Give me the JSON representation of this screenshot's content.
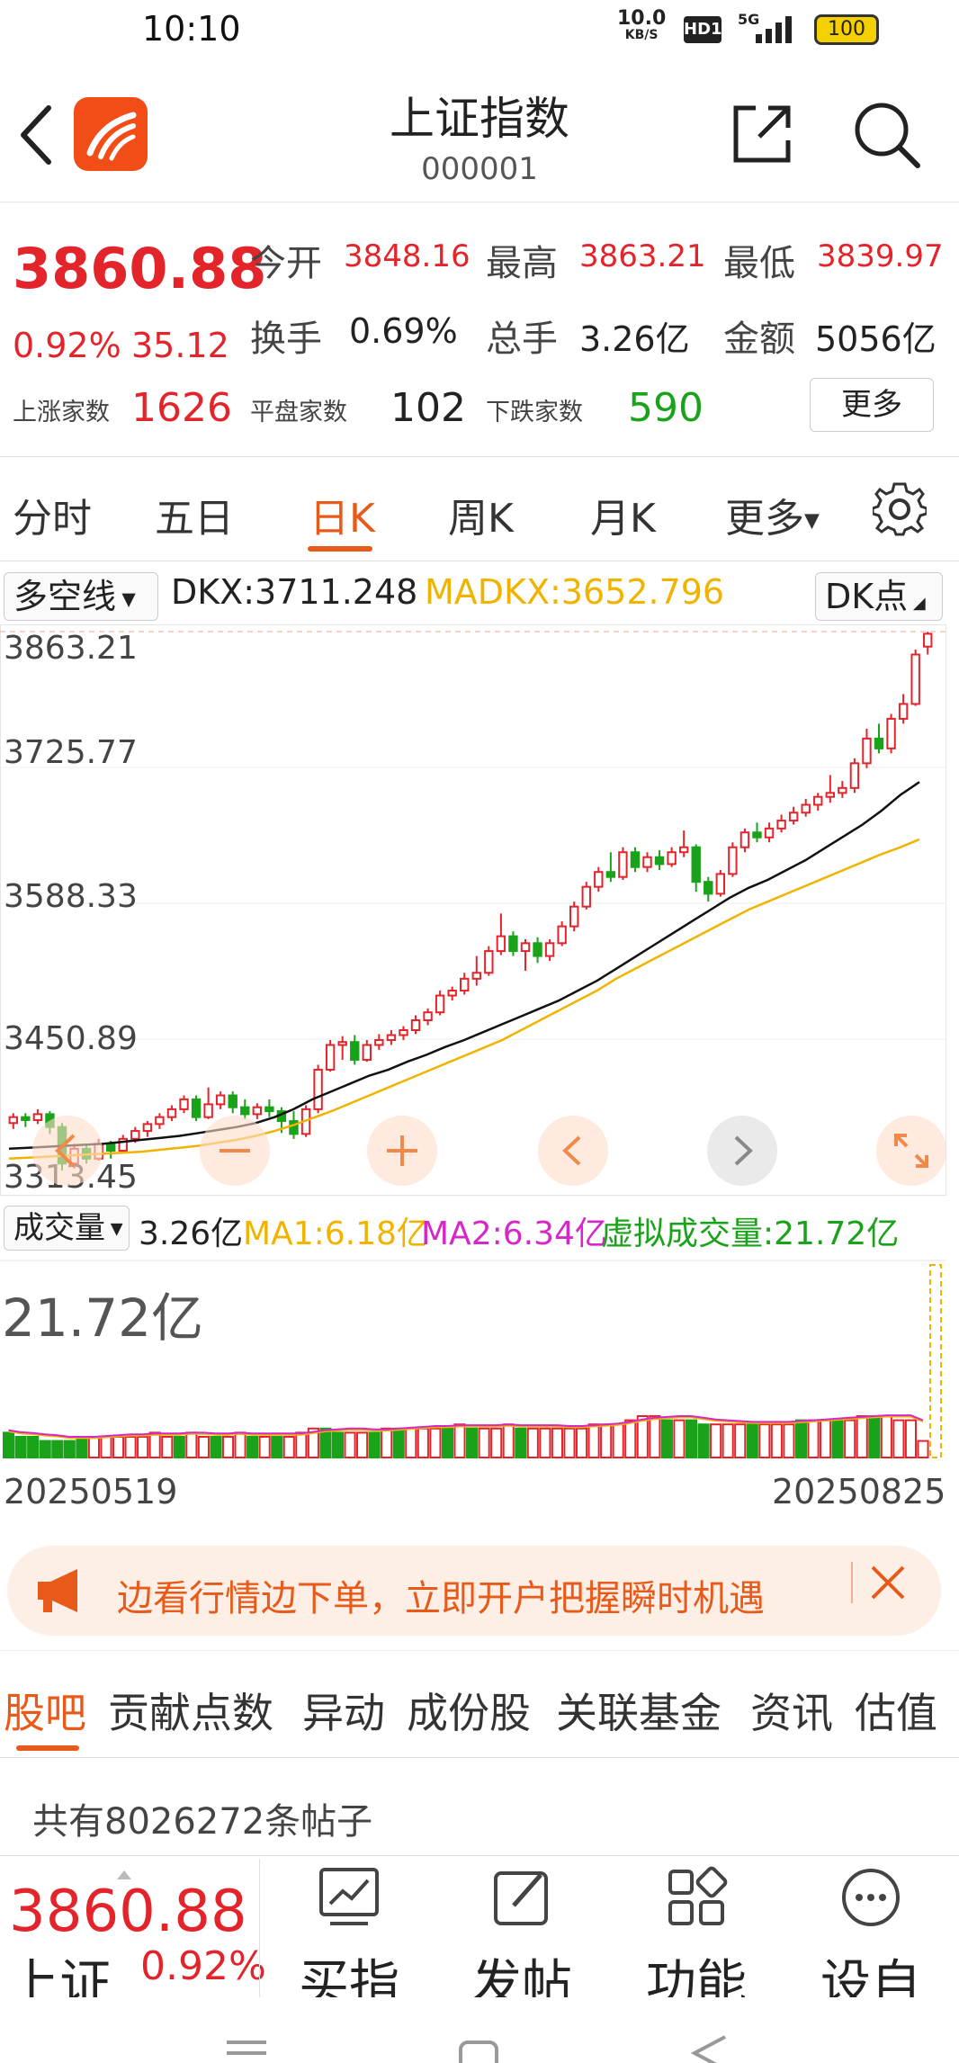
{
  "status": {
    "time": "10:10",
    "net_speed": "10.0",
    "net_unit": "KB/S",
    "hd": "HD1",
    "signal": "5G",
    "battery": "100"
  },
  "header": {
    "title": "上证指数",
    "code": "000001"
  },
  "quote": {
    "price": "3860.88",
    "change_pct": "0.92%",
    "change": "35.12",
    "open_label": "今开",
    "open": "3848.16",
    "high_label": "最高",
    "high": "3863.21",
    "low_label": "最低",
    "low": "3839.97",
    "turnover_label": "换手",
    "turnover": "0.69%",
    "volume_label": "总手",
    "volume": "3.26亿",
    "amount_label": "金额",
    "amount": "5056亿",
    "up_label": "上涨家数",
    "up": "1626",
    "flat_label": "平盘家数",
    "flat": "102",
    "down_label": "下跌家数",
    "down": "590",
    "more": "更多"
  },
  "tabs": {
    "items": [
      "分时",
      "五日",
      "日K",
      "周K",
      "月K",
      "更多"
    ],
    "active": "日K"
  },
  "indicator": {
    "select": "多空线",
    "dkx": "DKX:3711.248",
    "madkx": "MADKX:3652.796",
    "dk_point": "DK点"
  },
  "chart_data": {
    "type": "candlestick",
    "y_ticks": [
      "3863.21",
      "3725.77",
      "3588.33",
      "3450.89",
      "3313.45"
    ],
    "ylim": [
      3313.45,
      3863.21
    ],
    "candles": [
      [
        3366,
        3372,
        3360,
        3376
      ],
      [
        3372,
        3369,
        3362,
        3376
      ],
      [
        3369,
        3375,
        3365,
        3380
      ],
      [
        3375,
        3362,
        3355,
        3378
      ],
      [
        3362,
        3325,
        3318,
        3366
      ],
      [
        3325,
        3340,
        3320,
        3345
      ],
      [
        3340,
        3330,
        3325,
        3344
      ],
      [
        3330,
        3345,
        3328,
        3350
      ],
      [
        3345,
        3338,
        3330,
        3348
      ],
      [
        3338,
        3350,
        3335,
        3354
      ],
      [
        3350,
        3358,
        3346,
        3362
      ],
      [
        3358,
        3365,
        3352,
        3368
      ],
      [
        3365,
        3372,
        3360,
        3376
      ],
      [
        3372,
        3380,
        3368,
        3384
      ],
      [
        3380,
        3390,
        3376,
        3394
      ],
      [
        3390,
        3372,
        3368,
        3394
      ],
      [
        3372,
        3385,
        3370,
        3402
      ],
      [
        3385,
        3394,
        3380,
        3398
      ],
      [
        3394,
        3382,
        3376,
        3398
      ],
      [
        3382,
        3375,
        3370,
        3390
      ],
      [
        3375,
        3382,
        3370,
        3386
      ],
      [
        3382,
        3378,
        3372,
        3390
      ],
      [
        3378,
        3368,
        3356,
        3382
      ],
      [
        3368,
        3355,
        3350,
        3378
      ],
      [
        3355,
        3380,
        3352,
        3384
      ],
      [
        3380,
        3420,
        3376,
        3425
      ],
      [
        3420,
        3445,
        3418,
        3450
      ],
      [
        3445,
        3448,
        3430,
        3454
      ],
      [
        3448,
        3430,
        3425,
        3455
      ],
      [
        3430,
        3445,
        3428,
        3450
      ],
      [
        3445,
        3450,
        3440,
        3456
      ],
      [
        3450,
        3455,
        3445,
        3460
      ],
      [
        3455,
        3460,
        3450,
        3464
      ],
      [
        3460,
        3470,
        3456,
        3475
      ],
      [
        3470,
        3478,
        3465,
        3482
      ],
      [
        3478,
        3495,
        3475,
        3500
      ],
      [
        3495,
        3500,
        3490,
        3504
      ],
      [
        3500,
        3512,
        3496,
        3518
      ],
      [
        3512,
        3518,
        3505,
        3535
      ],
      [
        3518,
        3540,
        3515,
        3545
      ],
      [
        3540,
        3555,
        3536,
        3578
      ],
      [
        3555,
        3540,
        3535,
        3560
      ],
      [
        3540,
        3548,
        3520,
        3552
      ],
      [
        3548,
        3535,
        3528,
        3554
      ],
      [
        3535,
        3548,
        3530,
        3552
      ],
      [
        3548,
        3565,
        3545,
        3570
      ],
      [
        3565,
        3585,
        3560,
        3590
      ],
      [
        3585,
        3605,
        3582,
        3610
      ],
      [
        3605,
        3620,
        3600,
        3625
      ],
      [
        3620,
        3615,
        3610,
        3640
      ],
      [
        3615,
        3640,
        3612,
        3645
      ],
      [
        3640,
        3625,
        3620,
        3645
      ],
      [
        3625,
        3635,
        3620,
        3640
      ],
      [
        3635,
        3628,
        3622,
        3642
      ],
      [
        3628,
        3640,
        3625,
        3645
      ],
      [
        3640,
        3645,
        3635,
        3662
      ],
      [
        3645,
        3610,
        3600,
        3648
      ],
      [
        3610,
        3598,
        3590,
        3615
      ],
      [
        3598,
        3618,
        3595,
        3622
      ],
      [
        3618,
        3645,
        3615,
        3650
      ],
      [
        3645,
        3660,
        3640,
        3664
      ],
      [
        3660,
        3655,
        3650,
        3670
      ],
      [
        3655,
        3664,
        3650,
        3670
      ],
      [
        3664,
        3672,
        3660,
        3678
      ],
      [
        3672,
        3680,
        3668,
        3686
      ],
      [
        3680,
        3688,
        3676,
        3694
      ],
      [
        3688,
        3696,
        3682,
        3700
      ],
      [
        3696,
        3700,
        3690,
        3718
      ],
      [
        3700,
        3705,
        3695,
        3712
      ],
      [
        3705,
        3730,
        3700,
        3735
      ],
      [
        3730,
        3755,
        3725,
        3765
      ],
      [
        3755,
        3745,
        3740,
        3770
      ],
      [
        3745,
        3775,
        3740,
        3780
      ],
      [
        3775,
        3790,
        3770,
        3800
      ],
      [
        3790,
        3840,
        3788,
        3845
      ],
      [
        3848,
        3861,
        3840,
        3863
      ]
    ],
    "dkx_line": [
      3340,
      3341,
      3342,
      3343,
      3344,
      3345,
      3347,
      3349,
      3351,
      3353,
      3356,
      3359,
      3362,
      3366,
      3372,
      3380,
      3390,
      3398,
      3406,
      3414,
      3420,
      3428,
      3435,
      3443,
      3450,
      3458,
      3466,
      3474,
      3482,
      3490,
      3500,
      3510,
      3522,
      3534,
      3546,
      3558,
      3570,
      3582,
      3594,
      3604,
      3612,
      3622,
      3632,
      3644,
      3656,
      3668,
      3682,
      3698,
      3711
    ],
    "madkx_line": [
      3330,
      3331,
      3332,
      3333,
      3334,
      3335,
      3336,
      3337,
      3339,
      3341,
      3343,
      3346,
      3349,
      3353,
      3358,
      3364,
      3371,
      3378,
      3386,
      3394,
      3402,
      3410,
      3418,
      3426,
      3434,
      3442,
      3450,
      3460,
      3470,
      3480,
      3490,
      3500,
      3512,
      3522,
      3532,
      3542,
      3552,
      3562,
      3572,
      3582,
      3590,
      3598,
      3606,
      3614,
      3622,
      3630,
      3638,
      3645,
      3653
    ]
  },
  "chart_buttons": [
    "zoom-out",
    "zoom-in",
    "prev",
    "next",
    "fullscreen"
  ],
  "volume": {
    "select": "成交量",
    "value": "3.26亿",
    "ma1": "MA1:6.18亿",
    "ma2": "MA2:6.34亿",
    "virtual": "虚拟成交量:21.72亿",
    "max": "21.72亿",
    "date_start": "20250519",
    "date_end": "20250825",
    "bars": [
      6,
      5,
      5,
      4,
      4,
      4,
      5,
      5,
      5,
      5,
      5,
      5,
      6,
      5,
      5,
      6,
      5,
      5,
      5,
      6,
      5,
      5,
      5,
      5,
      6,
      7,
      7,
      6,
      6,
      6,
      6,
      7,
      7,
      7,
      7,
      7,
      7,
      8,
      7,
      7,
      7,
      8,
      7,
      7,
      7,
      7,
      7,
      7,
      8,
      8,
      8,
      9,
      10,
      10,
      9,
      9,
      9,
      8,
      8,
      8,
      8,
      8,
      8,
      8,
      8,
      9,
      9,
      9,
      9,
      9,
      10,
      10,
      10,
      9,
      9,
      4
    ],
    "bar_colors": [
      "g",
      "g",
      "g",
      "g",
      "g",
      "g",
      "g",
      "r",
      "r",
      "r",
      "r",
      "r",
      "r",
      "r",
      "g",
      "r",
      "r",
      "g",
      "r",
      "r",
      "g",
      "r",
      "g",
      "r",
      "r",
      "r",
      "g",
      "g",
      "r",
      "r",
      "g",
      "r",
      "g",
      "r",
      "r",
      "r",
      "g",
      "r",
      "g",
      "r",
      "r",
      "r",
      "g",
      "r",
      "r",
      "r",
      "r",
      "r",
      "r",
      "r",
      "r",
      "r",
      "r",
      "r",
      "g",
      "r",
      "g",
      "g",
      "r",
      "r",
      "r",
      "g",
      "r",
      "r",
      "r",
      "g",
      "r",
      "r",
      "g",
      "r",
      "r",
      "g",
      "r",
      "r",
      "r",
      "r"
    ]
  },
  "banner": {
    "text": "边看行情边下单，立即开户把握瞬时机遇"
  },
  "bottom_tabs": {
    "items": [
      "股吧",
      "贡献点数",
      "异动",
      "成份股",
      "关联基金",
      "资讯",
      "估值"
    ],
    "active": "股吧"
  },
  "posts": {
    "count_text": "共有8026272条帖子"
  },
  "toolbar": {
    "price": "3860.88",
    "name": "上证",
    "pct": "0.92%",
    "items": [
      "买指",
      "发帖",
      "功能",
      "设自"
    ]
  },
  "colors": {
    "up": "#e3242b",
    "down": "#1aa31a",
    "accent": "#e85a19",
    "dkx": "#111111",
    "madkx": "#f0b400",
    "ma2": "#d628c8"
  }
}
